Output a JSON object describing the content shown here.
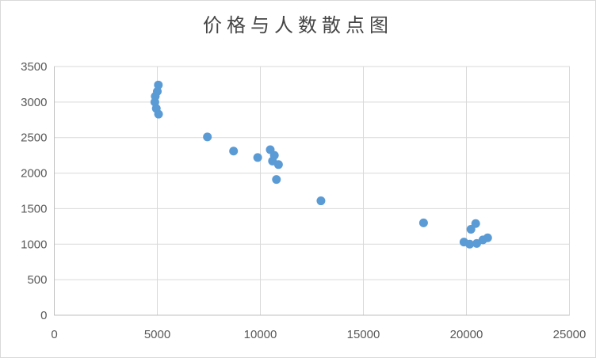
{
  "window": {
    "background": "#ffffff",
    "border_color": "#d9d9d9"
  },
  "chart_data": {
    "type": "scatter",
    "title": "价格与人数散点图",
    "xlabel": "",
    "ylabel": "",
    "xlim": [
      0,
      25000
    ],
    "ylim": [
      0,
      3500
    ],
    "x_ticks": [
      0,
      5000,
      10000,
      15000,
      20000,
      25000
    ],
    "y_ticks": [
      0,
      500,
      1000,
      1500,
      2000,
      2500,
      3000,
      3500
    ],
    "grid": true,
    "legend": false,
    "marker_color": "#5b9bd5",
    "gridline_color": "#d9d9d9",
    "plot_border_color": "#d9d9d9",
    "axis_line_color": "#bfbfbf",
    "tick_label_color": "#595959",
    "title_color": "#454545",
    "points": [
      [
        5050,
        3240
      ],
      [
        5000,
        3150
      ],
      [
        4900,
        3080
      ],
      [
        4880,
        3000
      ],
      [
        4950,
        2910
      ],
      [
        5060,
        2830
      ],
      [
        7430,
        2510
      ],
      [
        8700,
        2310
      ],
      [
        9870,
        2220
      ],
      [
        10480,
        2330
      ],
      [
        10680,
        2250
      ],
      [
        10590,
        2170
      ],
      [
        10880,
        2120
      ],
      [
        10780,
        1910
      ],
      [
        12940,
        1610
      ],
      [
        17920,
        1300
      ],
      [
        20450,
        1290
      ],
      [
        20220,
        1210
      ],
      [
        19880,
        1030
      ],
      [
        20160,
        1000
      ],
      [
        20500,
        1010
      ],
      [
        20800,
        1060
      ],
      [
        21030,
        1090
      ]
    ]
  }
}
